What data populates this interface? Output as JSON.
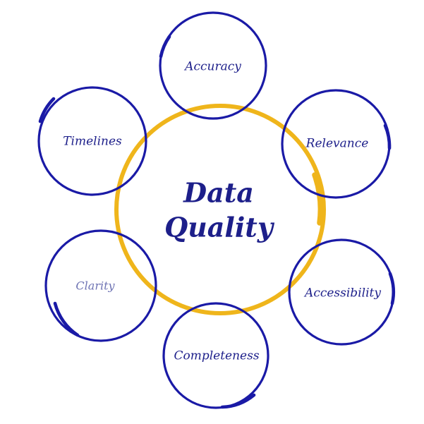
{
  "diagram": {
    "center": {
      "line1": "Data",
      "line2": "Quality"
    },
    "nodes": [
      {
        "id": "accuracy",
        "label": "Accuracy"
      },
      {
        "id": "relevance",
        "label": "Relevance"
      },
      {
        "id": "accessibility",
        "label": "Accessibility"
      },
      {
        "id": "completeness",
        "label": "Completeness"
      },
      {
        "id": "clarity",
        "label": "Clarity"
      },
      {
        "id": "timelines",
        "label": "Timelines"
      }
    ],
    "colors": {
      "blue": "#1a1aa6",
      "blue_text": "#1d1f8a",
      "clarity_text": "#6f74b4",
      "gold": "#efb51b"
    }
  }
}
